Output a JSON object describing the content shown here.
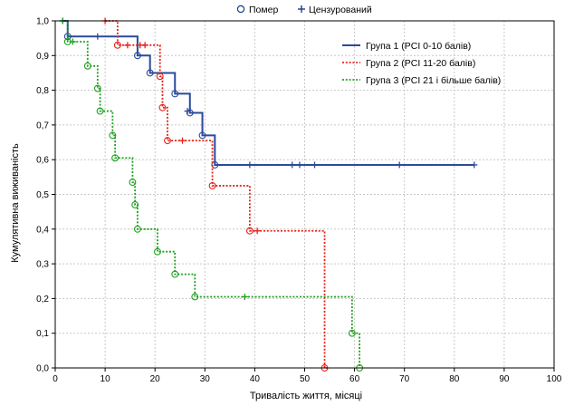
{
  "chart_data": {
    "type": "line",
    "subtype": "kaplan-meier",
    "xlabel": "Тривалість життя, місяці",
    "ylabel": "Кумулятивна виживаність",
    "xlim": [
      0,
      100
    ],
    "ylim": [
      0,
      1
    ],
    "x_ticks": [
      "0",
      "10",
      "20",
      "30",
      "40",
      "50",
      "60",
      "70",
      "80",
      "90",
      "100"
    ],
    "y_ticks": [
      "0,0",
      "0,1",
      "0,2",
      "0,3",
      "0,4",
      "0,5",
      "0,6",
      "0,7",
      "0,8",
      "0,9",
      "1,0"
    ],
    "grid": true,
    "marker_legend": {
      "event": "Помер",
      "censored": "Цензурований",
      "event_color": "#1a3a8c",
      "censored_color": "#1a3a8c"
    },
    "series_legend_position": "top-right",
    "series": [
      {
        "name": "Група 1 (PCI 0-10 балів)",
        "color": "#2b4a9a",
        "dash": "solid",
        "steps": [
          [
            1.5,
            1.0
          ],
          [
            2.5,
            0.955
          ],
          [
            16.5,
            0.9
          ],
          [
            19,
            0.85
          ],
          [
            24,
            0.79
          ],
          [
            27,
            0.735
          ],
          [
            29.5,
            0.67
          ],
          [
            32,
            0.585
          ],
          [
            84,
            0.585
          ]
        ],
        "deaths": [
          [
            2.5,
            0.955
          ],
          [
            16.5,
            0.9
          ],
          [
            19,
            0.85
          ],
          [
            24,
            0.79
          ],
          [
            27,
            0.735
          ],
          [
            29.5,
            0.67
          ],
          [
            32,
            0.585
          ]
        ],
        "censored": [
          [
            1.5,
            1.0
          ],
          [
            8.5,
            0.955
          ],
          [
            26.5,
            0.74
          ],
          [
            39,
            0.585
          ],
          [
            47.5,
            0.585
          ],
          [
            49,
            0.585
          ],
          [
            52,
            0.585
          ],
          [
            69,
            0.585
          ],
          [
            84,
            0.585
          ]
        ]
      },
      {
        "name": "Група 2 (PCI 11-20 балів)",
        "color": "#e8201a",
        "dash": "dotted",
        "steps": [
          [
            10,
            1.0
          ],
          [
            12.5,
            0.93
          ],
          [
            21,
            0.84
          ],
          [
            21.5,
            0.75
          ],
          [
            22.5,
            0.655
          ],
          [
            31.5,
            0.525
          ],
          [
            39,
            0.395
          ],
          [
            54,
            0.0
          ],
          [
            54.5,
            0.0
          ]
        ],
        "deaths": [
          [
            12.5,
            0.93
          ],
          [
            21,
            0.84
          ],
          [
            21.5,
            0.75
          ],
          [
            22.5,
            0.655
          ],
          [
            31.5,
            0.525
          ],
          [
            39,
            0.395
          ],
          [
            54,
            0.0
          ]
        ],
        "censored": [
          [
            10,
            1.0
          ],
          [
            14.5,
            0.93
          ],
          [
            17,
            0.93
          ],
          [
            18,
            0.93
          ],
          [
            25.5,
            0.655
          ],
          [
            40.5,
            0.395
          ]
        ]
      },
      {
        "name": "Група 3 (PCI 21 і більше балів)",
        "color": "#1fa11f",
        "dash": "dotted",
        "steps": [
          [
            1.5,
            1.0
          ],
          [
            2.5,
            0.94
          ],
          [
            6.5,
            0.87
          ],
          [
            8.5,
            0.805
          ],
          [
            9,
            0.74
          ],
          [
            11.5,
            0.67
          ],
          [
            12,
            0.605
          ],
          [
            15.5,
            0.535
          ],
          [
            16,
            0.47
          ],
          [
            16.5,
            0.4
          ],
          [
            20.5,
            0.335
          ],
          [
            24,
            0.27
          ],
          [
            28,
            0.205
          ],
          [
            59.5,
            0.1
          ],
          [
            61,
            0.0
          ]
        ],
        "deaths": [
          [
            2.5,
            0.94
          ],
          [
            6.5,
            0.87
          ],
          [
            8.5,
            0.805
          ],
          [
            9,
            0.74
          ],
          [
            11.5,
            0.67
          ],
          [
            12,
            0.605
          ],
          [
            15.5,
            0.535
          ],
          [
            16,
            0.47
          ],
          [
            16.5,
            0.4
          ],
          [
            20.5,
            0.335
          ],
          [
            24,
            0.27
          ],
          [
            28,
            0.205
          ],
          [
            59.5,
            0.1
          ],
          [
            61,
            0.0
          ]
        ],
        "censored": [
          [
            1.5,
            1.0
          ],
          [
            3.5,
            0.94
          ],
          [
            38,
            0.205
          ]
        ]
      }
    ]
  }
}
